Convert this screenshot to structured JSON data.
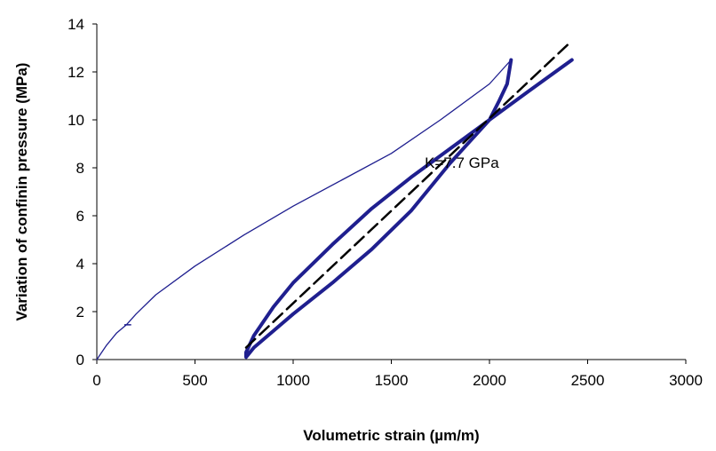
{
  "chart_data": {
    "type": "line",
    "title": "",
    "xlabel": "Volumetric strain (µm/m)",
    "ylabel": "Variation of confinin pressure (MPa)",
    "xlim": [
      0,
      3000
    ],
    "ylim": [
      0,
      14
    ],
    "xticks": [
      0,
      500,
      1000,
      1500,
      2000,
      2500,
      3000
    ],
    "yticks": [
      0,
      2,
      4,
      6,
      8,
      10,
      12,
      14
    ],
    "grid": false,
    "legend": "none",
    "annotation": "K=7.7 GPa",
    "colors": {
      "loop": "#1f1f8f",
      "loading": "#1f1f8f",
      "fit": "#000000"
    },
    "series": [
      {
        "style": "thin",
        "points": [
          [
            0,
            0
          ],
          [
            50,
            0.6
          ],
          [
            100,
            1.1
          ],
          [
            150,
            1.45
          ],
          [
            200,
            1.9
          ],
          [
            300,
            2.7
          ],
          [
            500,
            3.9
          ],
          [
            750,
            5.2
          ],
          [
            1000,
            6.4
          ],
          [
            1250,
            7.5
          ],
          [
            1500,
            8.6
          ],
          [
            1750,
            10.0
          ],
          [
            2000,
            11.5
          ],
          [
            2110,
            12.5
          ]
        ]
      },
      {
        "style": "thick",
        "points": [
          [
            2110,
            12.5
          ],
          [
            2090,
            11.5
          ],
          [
            2050,
            10.8
          ],
          [
            2000,
            10.0
          ],
          [
            1900,
            9.1
          ],
          [
            1800,
            8.2
          ],
          [
            1600,
            6.2
          ],
          [
            1400,
            4.6
          ],
          [
            1200,
            3.2
          ],
          [
            1000,
            1.9
          ],
          [
            900,
            1.2
          ],
          [
            800,
            0.5
          ],
          [
            760,
            0.1
          ],
          [
            760,
            0.3
          ],
          [
            800,
            1.0
          ],
          [
            900,
            2.2
          ],
          [
            1000,
            3.2
          ],
          [
            1200,
            4.8
          ],
          [
            1400,
            6.3
          ],
          [
            1600,
            7.6
          ],
          [
            1800,
            8.8
          ],
          [
            2000,
            10.0
          ],
          [
            2200,
            11.2
          ],
          [
            2420,
            12.5
          ]
        ]
      },
      {
        "style": "dashed",
        "points": [
          [
            760,
            0.5
          ],
          [
            2420,
            13.3
          ]
        ]
      }
    ]
  }
}
